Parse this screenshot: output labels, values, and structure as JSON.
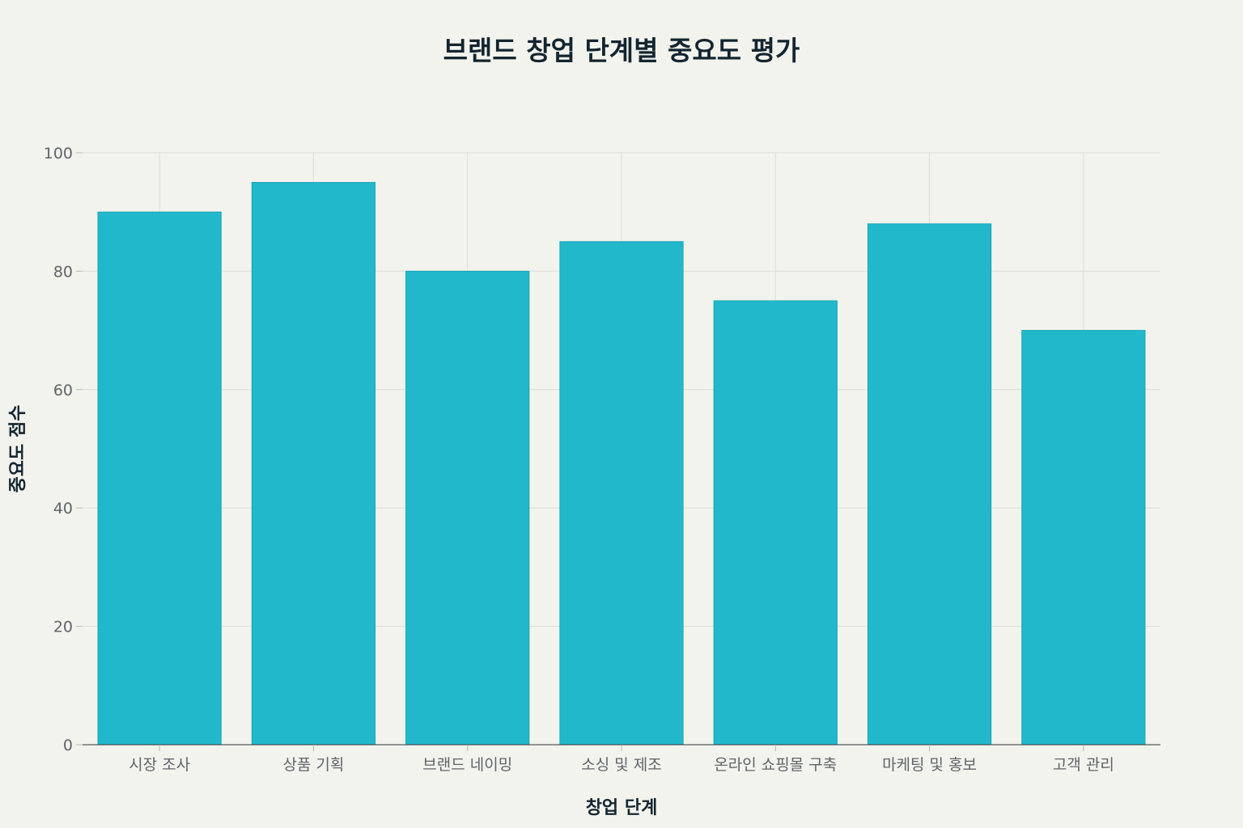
{
  "chart_data": {
    "type": "bar",
    "title": "브랜드 창업 단계별 중요도 평가",
    "xlabel": "창업 단계",
    "ylabel": "중요도 점수",
    "categories": [
      "시장 조사",
      "상품 기획",
      "브랜드 네이밍",
      "소싱 및 제조",
      "온라인 쇼핑몰 구축",
      "마케팅 및 홍보",
      "고객 관리"
    ],
    "values": [
      90,
      95,
      80,
      85,
      75,
      88,
      70
    ],
    "ylim": [
      0,
      100
    ],
    "yticks": [
      0,
      20,
      40,
      60,
      80,
      100
    ],
    "grid": true,
    "bar_color": "#21b8cc",
    "bar_edge_color": "#1aa3b5",
    "background": "#f3f3ee"
  }
}
